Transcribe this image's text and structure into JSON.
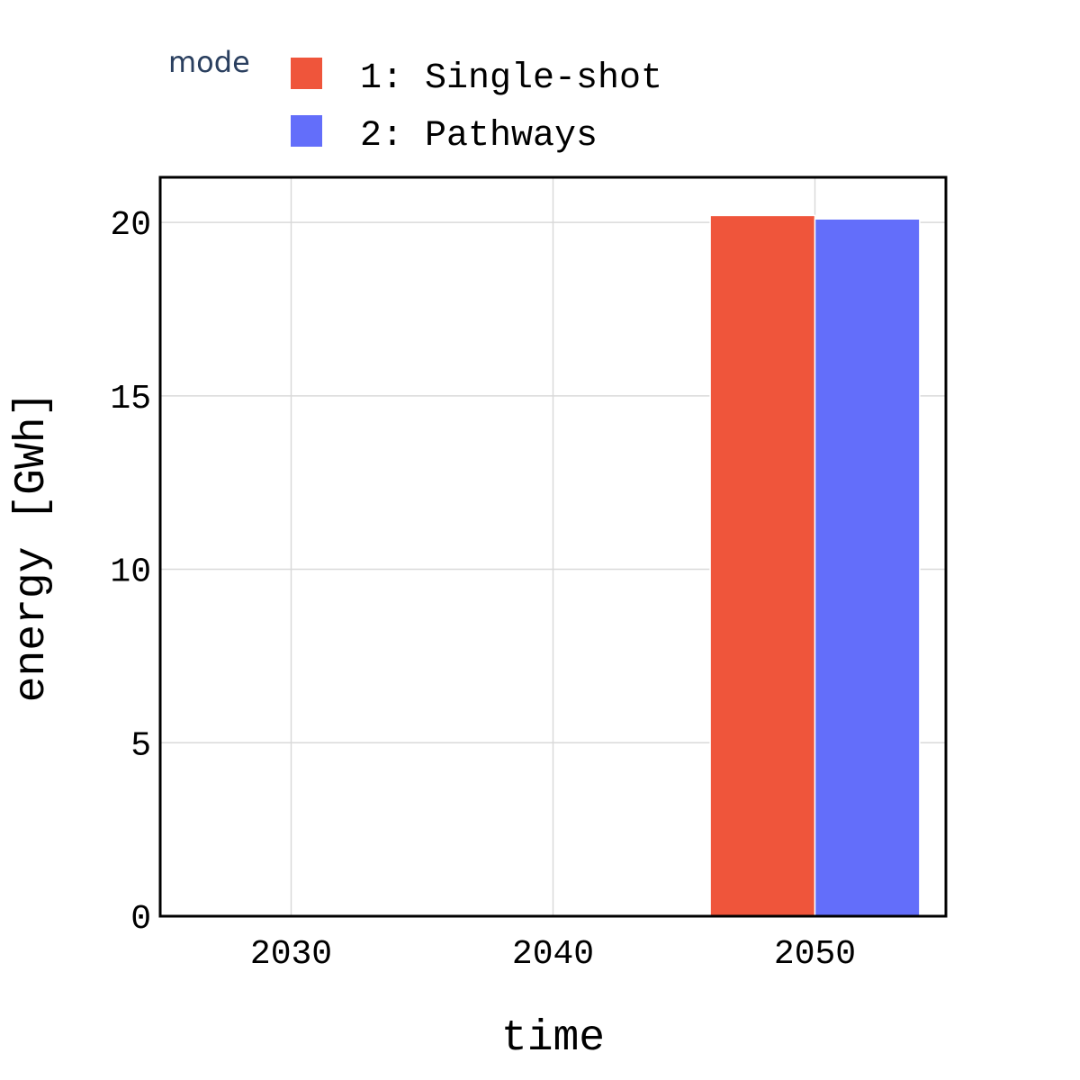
{
  "chart_data": {
    "type": "bar",
    "xlabel": "time",
    "ylabel": "energy [GWh]",
    "categories": [
      "2030",
      "2040",
      "2050"
    ],
    "category_values": [
      2030,
      2040,
      2050
    ],
    "xlim": [
      2025,
      2055
    ],
    "ylim": [
      0,
      21.3
    ],
    "yticks": [
      0,
      5,
      10,
      15,
      20
    ],
    "xticks": [
      2030,
      2040,
      2050
    ],
    "grid": true,
    "legend": {
      "title": "mode",
      "placement": "top-left"
    },
    "series": [
      {
        "name": "1: Single-shot",
        "color": "#EF553B",
        "values": [
          0,
          0,
          20.2
        ]
      },
      {
        "name": "2: Pathways",
        "color": "#636EFA",
        "values": [
          0,
          0,
          20.1
        ]
      }
    ]
  }
}
